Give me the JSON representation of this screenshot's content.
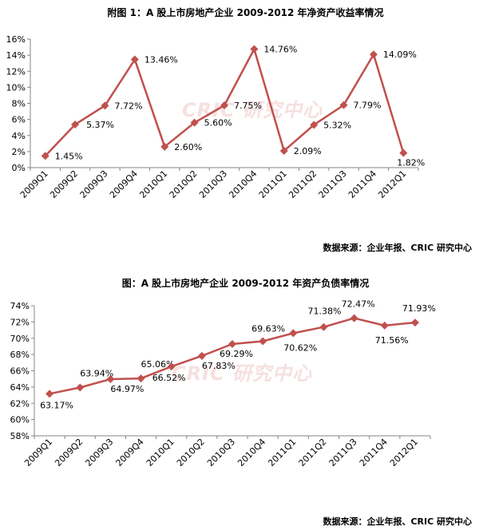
{
  "charts": [
    {
      "title": "附图 1：A 股上市房地产企业 2009-2012 年净资产收益率情况",
      "source": "数据来源：企业年报、CRIC 研究中心",
      "watermark": "CRIC 研究中心"
    },
    {
      "title": "图：A 股上市房地产企业 2009-2012 年资产负债率情况",
      "source": "数据来源：企业年报、CRIC 研究中心",
      "watermark": "CRIC 研究中心"
    }
  ],
  "chart_data": [
    {
      "type": "line",
      "title": "附图 1：A 股上市房地产企业 2009-2012 年净资产收益率情况",
      "categories": [
        "2009Q1",
        "2009Q2",
        "2009Q3",
        "2009Q4",
        "2010Q1",
        "2010Q2",
        "2010Q3",
        "2010Q4",
        "2011Q1",
        "2011Q2",
        "2011Q3",
        "2011Q4",
        "2012Q1"
      ],
      "values": [
        1.45,
        5.37,
        7.72,
        13.46,
        2.6,
        5.6,
        7.75,
        14.76,
        2.09,
        5.32,
        7.79,
        14.09,
        1.82
      ],
      "data_labels": [
        "1.45%",
        "5.37%",
        "7.72%",
        "13.46%",
        "2.60%",
        "5.60%",
        "7.75%",
        "14.76%",
        "2.09%",
        "5.32%",
        "7.79%",
        "14.09%",
        "1.82%"
      ],
      "ylim": [
        0,
        16
      ],
      "yticks": [
        "0%",
        "2%",
        "4%",
        "6%",
        "8%",
        "10%",
        "12%",
        "14%",
        "16%"
      ],
      "grid": false,
      "line_color": "#c0504d"
    },
    {
      "type": "line",
      "title": "图：A 股上市房地产企业 2009-2012 年资产负债率情况",
      "categories": [
        "2009Q1",
        "2009Q2",
        "2009Q3",
        "2009Q4",
        "2010Q1",
        "2010Q2",
        "2010Q3",
        "2010Q4",
        "2011Q1",
        "2011Q2",
        "2011Q3",
        "2011Q4",
        "2012Q1"
      ],
      "values": [
        63.17,
        63.94,
        64.97,
        65.06,
        66.52,
        67.83,
        69.29,
        69.63,
        70.62,
        71.38,
        72.47,
        71.56,
        71.93
      ],
      "data_labels": [
        "63.17%",
        "63.94%",
        "64.97%",
        "65.06%",
        "66.52%",
        "67.83%",
        "69.29%",
        "69.63%",
        "70.62%",
        "71.38%",
        "72.47%",
        "71.56%",
        "71.93%"
      ],
      "ylim": [
        58,
        74
      ],
      "yticks": [
        "58%",
        "60%",
        "62%",
        "64%",
        "66%",
        "68%",
        "70%",
        "72%",
        "74%"
      ],
      "grid": false,
      "line_color": "#c0504d"
    }
  ]
}
